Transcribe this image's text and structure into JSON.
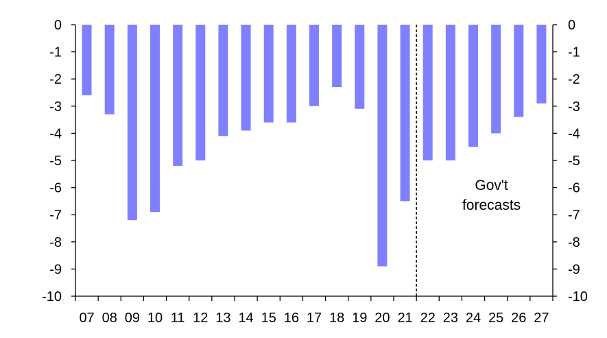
{
  "chart_data": {
    "type": "bar",
    "categories": [
      "07",
      "08",
      "09",
      "10",
      "11",
      "12",
      "13",
      "14",
      "15",
      "16",
      "17",
      "18",
      "19",
      "20",
      "21",
      "22",
      "23",
      "24",
      "25",
      "26",
      "27"
    ],
    "values": [
      -2.6,
      -3.3,
      -7.2,
      -6.9,
      -5.2,
      -5.0,
      -4.1,
      -3.9,
      -3.6,
      -3.6,
      -3.0,
      -2.3,
      -3.1,
      -8.9,
      -6.5,
      -5.0,
      -5.0,
      -4.5,
      -4.0,
      -3.4,
      -2.9
    ],
    "ylim": [
      -10,
      0
    ],
    "yticks": [
      0,
      -1,
      -2,
      -3,
      -4,
      -5,
      -6,
      -7,
      -8,
      -9,
      -10
    ],
    "yaxis_sides": "both",
    "grid": false,
    "bar_color": "#8080ff",
    "forecast_divider_after": "21",
    "annotation": {
      "line1": "Gov't",
      "line2": "forecasts"
    }
  }
}
